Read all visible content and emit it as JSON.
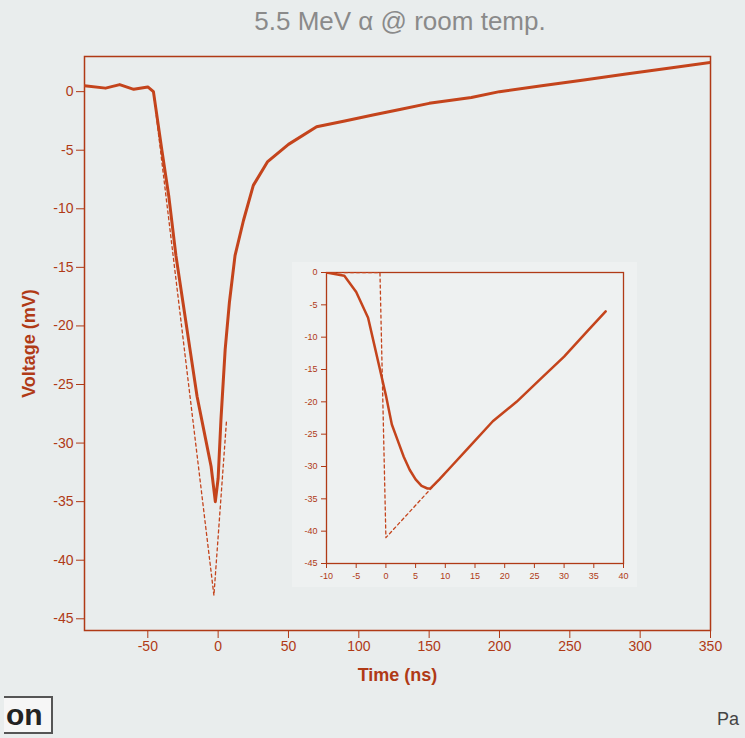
{
  "chart_data": [
    {
      "type": "line",
      "title": "5.5 MeV α @ room temp.",
      "x_label": "Time (ns)",
      "y_label": "Voltage (mV)",
      "xlim": [
        -95,
        350
      ],
      "xticks": [
        -50,
        0,
        50,
        100,
        150,
        200,
        250,
        300,
        350
      ],
      "ylim": [
        -46,
        3
      ],
      "yticks": [
        0,
        -5,
        -10,
        -15,
        -20,
        -25,
        -30,
        -35,
        -40,
        -45
      ],
      "series": [
        {
          "color": "#c4441c",
          "line_style": "solid",
          "x": [
            -95,
            -80,
            -70,
            -60,
            -50,
            -46,
            -40,
            -35,
            -30,
            -25,
            -20,
            -15,
            -10,
            -5,
            -2,
            0,
            2,
            5,
            8,
            12,
            18,
            25,
            35,
            50,
            70,
            90,
            110,
            130,
            150,
            180,
            200,
            230,
            260,
            290,
            320,
            350
          ],
          "values": [
            0.5,
            0.3,
            0.6,
            0.2,
            0.4,
            0,
            -5,
            -9,
            -14,
            -18,
            -22,
            -26,
            -29,
            -32,
            -35,
            -33,
            -28,
            -22,
            -18,
            -14,
            -11,
            -8,
            -6,
            -4.5,
            -3,
            -2.5,
            -2,
            -1.5,
            -1,
            -0.5,
            0,
            0.5,
            1,
            1.5,
            2,
            2.5
          ]
        },
        {
          "color": "#c4441c",
          "line_style": "dashed",
          "x": [
            -46,
            -3,
            6
          ],
          "values": [
            0,
            -43,
            -28
          ]
        }
      ]
    },
    {
      "type": "line",
      "xlim": [
        -10,
        40
      ],
      "xticks": [
        -10,
        -5,
        0,
        5,
        10,
        15,
        20,
        25,
        30,
        35,
        40
      ],
      "ylim": [
        -45,
        0
      ],
      "yticks": [
        0,
        -5,
        -10,
        -15,
        -20,
        -25,
        -30,
        -35,
        -40,
        -45
      ],
      "series": [
        {
          "color": "#c4441c",
          "line_style": "solid",
          "x": [
            -10,
            -7,
            -5,
            -3,
            -2,
            -1,
            0,
            1,
            2,
            3,
            4,
            5,
            6,
            7,
            7.5,
            9,
            11,
            14,
            18,
            22,
            26,
            30,
            34,
            37
          ],
          "values": [
            0,
            -0.5,
            -3,
            -7,
            -11,
            -15,
            -19,
            -23.5,
            -26,
            -28.5,
            -30.5,
            -32,
            -33,
            -33.4,
            -33.4,
            -32,
            -30,
            -27,
            -23,
            -20,
            -16.5,
            -13,
            -9,
            -6
          ]
        },
        {
          "color": "#c4441c",
          "line_style": "dashed",
          "x": [
            -10,
            -1,
            0,
            5,
            10
          ],
          "values": [
            0,
            0,
            -41,
            -36,
            -31
          ]
        }
      ]
    }
  ],
  "fragments": [
    "on",
    "Pa"
  ]
}
